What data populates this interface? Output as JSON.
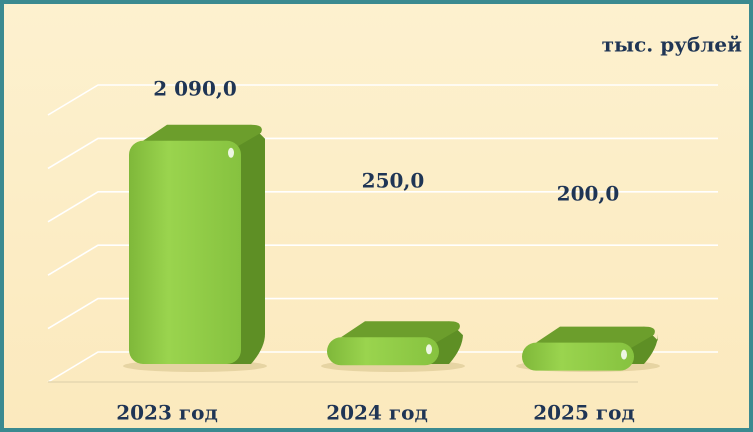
{
  "chart_data": {
    "type": "bar",
    "annotation": "тыс. рублей",
    "categories": [
      "2023 год",
      "2024 год",
      "2025 год"
    ],
    "values": [
      2090,
      250,
      200
    ],
    "value_labels": [
      "2 090,0",
      "250,0",
      "200,0"
    ],
    "color": "#8cc63f",
    "ylim": [
      0,
      2500
    ],
    "yticks": [
      0,
      500,
      1000,
      1500,
      2000,
      2500
    ],
    "grid": true
  }
}
